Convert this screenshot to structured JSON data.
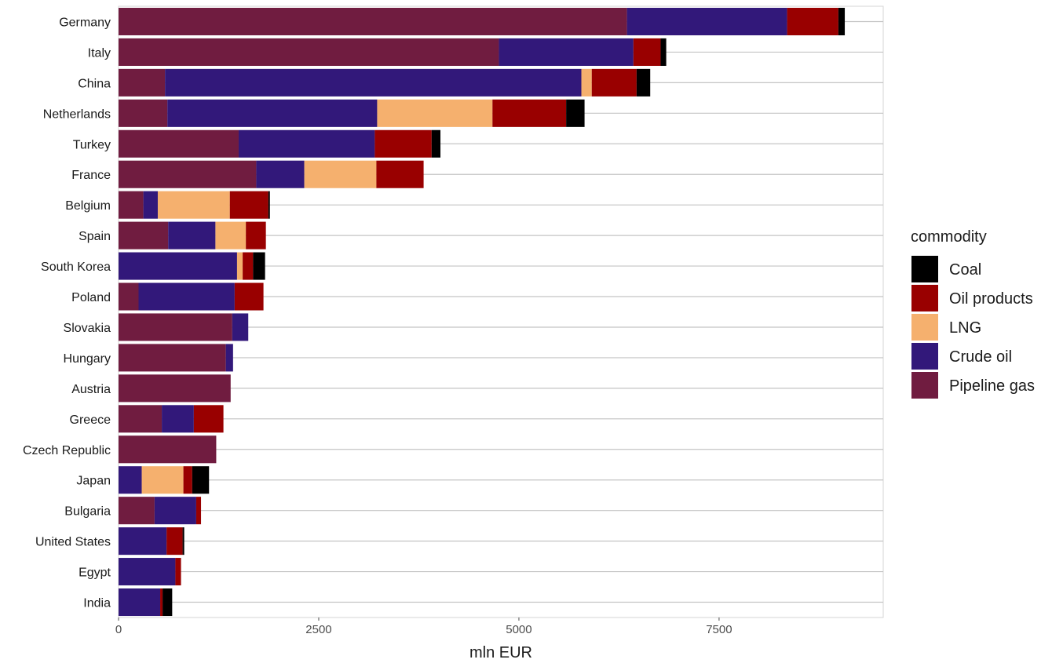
{
  "chart_data": {
    "type": "bar",
    "orientation": "horizontal",
    "stacked": true,
    "xlabel": "mln EUR",
    "ylabel": "",
    "title": "",
    "xlim": [
      0,
      9550
    ],
    "xticks": [
      0,
      2500,
      5000,
      7500
    ],
    "grid": true,
    "legend": {
      "title": "commodity",
      "position": "right"
    },
    "categories": [
      "Germany",
      "Italy",
      "China",
      "Netherlands",
      "Turkey",
      "France",
      "Belgium",
      "Spain",
      "South Korea",
      "Poland",
      "Slovakia",
      "Hungary",
      "Austria",
      "Greece",
      "Czech Republic",
      "Japan",
      "Bulgaria",
      "United States",
      "Egypt",
      "India"
    ],
    "series": [
      {
        "name": "Pipeline gas",
        "color": "#701C40",
        "values": [
          6350,
          4750,
          580,
          610,
          1500,
          1720,
          310,
          620,
          0,
          250,
          1420,
          1340,
          1400,
          540,
          1220,
          0,
          450,
          0,
          0,
          0
        ]
      },
      {
        "name": "Crude oil",
        "color": "#32187A",
        "values": [
          2000,
          1680,
          5200,
          2620,
          1700,
          600,
          180,
          590,
          1480,
          1200,
          200,
          90,
          0,
          400,
          0,
          290,
          520,
          600,
          710,
          520
        ]
      },
      {
        "name": "LNG",
        "color": "#F5B06E",
        "values": [
          0,
          0,
          130,
          1440,
          0,
          900,
          900,
          380,
          70,
          0,
          0,
          0,
          0,
          0,
          0,
          520,
          0,
          0,
          0,
          0
        ]
      },
      {
        "name": "Oil products",
        "color": "#990000",
        "values": [
          640,
          340,
          560,
          920,
          710,
          590,
          480,
          250,
          130,
          360,
          0,
          0,
          0,
          370,
          0,
          110,
          60,
          200,
          70,
          30
        ]
      },
      {
        "name": "Coal",
        "color": "#000000",
        "values": [
          80,
          70,
          170,
          230,
          110,
          0,
          20,
          0,
          150,
          0,
          0,
          0,
          0,
          0,
          0,
          210,
          0,
          20,
          0,
          120
        ]
      }
    ],
    "legend_order": [
      "Coal",
      "Oil products",
      "LNG",
      "Crude oil",
      "Pipeline gas"
    ]
  }
}
